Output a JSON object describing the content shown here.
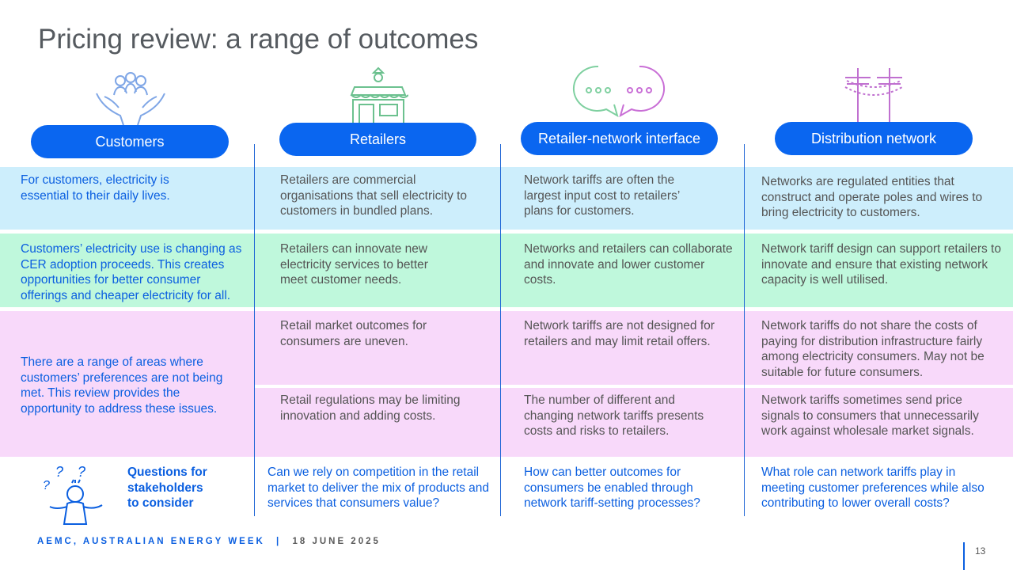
{
  "title": "Pricing review: a range of outcomes",
  "columns": [
    {
      "label": "Customers",
      "icon": "customers-hands-icon"
    },
    {
      "label": "Retailers",
      "icon": "shop-icon"
    },
    {
      "label": "Retailer-network interface",
      "icon": "speech-bubbles-icon"
    },
    {
      "label": "Distribution network",
      "icon": "power-pole-icon"
    }
  ],
  "rows": {
    "row1": [
      "For customers, electricity is essential to their daily lives.",
      "Retailers are commercial organisations that sell electricity to customers in bundled plans.",
      "Network tariffs are often the largest input cost to retailers’ plans for customers.",
      "Networks are regulated entities that construct and operate poles and wires to bring electricity to customers."
    ],
    "row2": [
      "Customers’ electricity use is changing as CER adoption proceeds. This creates opportunities for better consumer offerings and cheaper electricity for all.",
      "Retailers can innovate new electricity services to better meet customer needs.",
      "Networks and retailers can collaborate and innovate and lower customer costs.",
      "Network tariff design can support retailers to innovate and ensure that existing network capacity is well utilised."
    ],
    "row3_customers": "There are a range of areas where customers’ preferences are not being met. This review provides the opportunity to address these issues.",
    "row3a": [
      "Retail market outcomes for consumers are uneven.",
      "Network tariffs are not designed for retailers and may limit retail offers.",
      "Network tariffs do not share the costs of paying for distribution infrastructure fairly among electricity consumers. May not be suitable for future consumers."
    ],
    "row3b": [
      "Retail regulations may be limiting innovation and adding costs.",
      "The number of different and changing network tariffs presents costs and risks to retailers.",
      "Network tariffs sometimes send price signals to consumers that unnecessarily work against wholesale market signals."
    ]
  },
  "questions": {
    "heading": "Questions for stakeholders to consider",
    "icon": "confused-person-icon",
    "items": [
      "Can we rely on competition in the retail market to deliver the mix of products and services that consumers value?",
      "How can better outcomes for consumers be enabled through network tariff-setting processes?",
      "What role can network tariffs play in meeting customer preferences while also contributing to lower overall costs?"
    ]
  },
  "footer": {
    "org": "AEMC, AUSTRALIAN ENERGY WEEK",
    "separator": "|",
    "date": "18 JUNE 2025",
    "page": "13"
  },
  "colors": {
    "accent": "#0a66f0",
    "row1_bg": "#cdeefc",
    "row2_bg": "#bff8dc",
    "row3_bg": "#f8d9fa"
  }
}
